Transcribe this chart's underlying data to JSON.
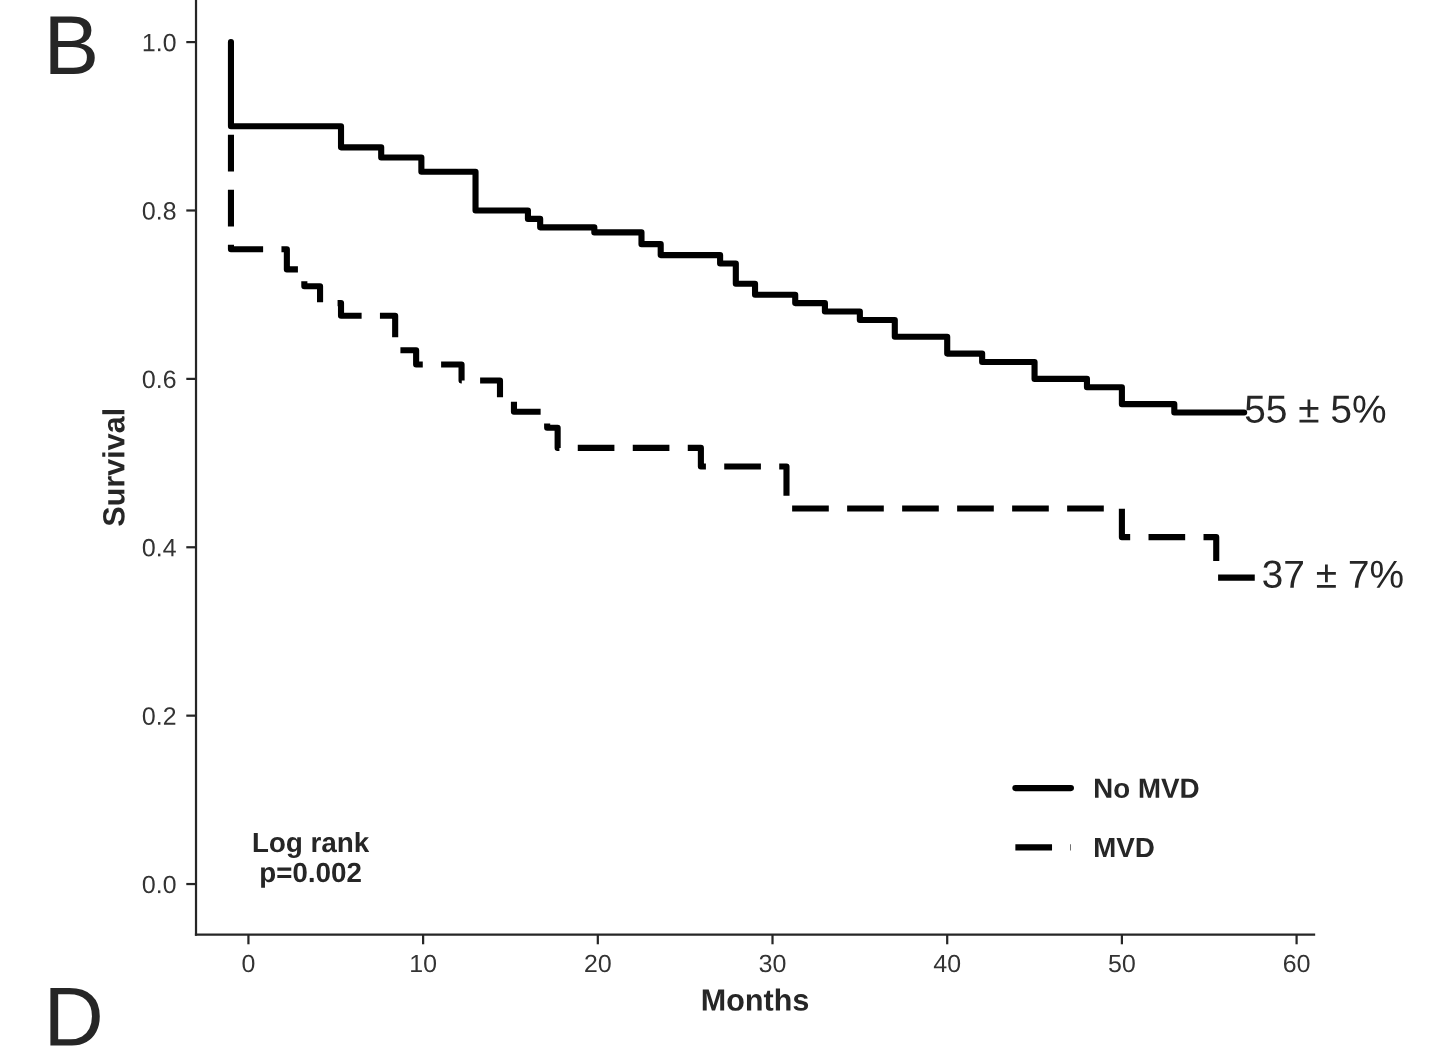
{
  "chart_data": {
    "type": "step",
    "title": "B",
    "xlabel": "Months",
    "ylabel": "Survival",
    "xlim": [
      -3,
      61
    ],
    "ylim": [
      -0.06,
      1.05
    ],
    "xticks": [
      0,
      10,
      20,
      30,
      40,
      50,
      60
    ],
    "yticks": [
      {
        "value": 0,
        "label": "0.0"
      },
      0.2,
      0.4,
      0.6,
      0.8,
      {
        "value": 1,
        "label": "1.0"
      }
    ],
    "series": [
      {
        "name": "No MVD",
        "color": "#000000",
        "line_style": "solid",
        "x": [
          -1,
          -1,
          5.3,
          7.6,
          9.9,
          13,
          16,
          16.7,
          19.8,
          22.5,
          23.6,
          27,
          27.9,
          29,
          31.3,
          33,
          35,
          37,
          40,
          42,
          45,
          48,
          50,
          53,
          57
        ],
        "values": [
          1.0,
          0.9,
          0.875,
          0.863,
          0.846,
          0.8,
          0.79,
          0.78,
          0.774,
          0.76,
          0.747,
          0.737,
          0.713,
          0.7,
          0.69,
          0.68,
          0.67,
          0.65,
          0.63,
          0.62,
          0.6,
          0.59,
          0.57,
          0.56,
          0.56
        ]
      },
      {
        "name": "MVD",
        "color": "#000000",
        "line_style": "dashed",
        "x": [
          -1,
          -1,
          2.2,
          3.2,
          4.1,
          5.3,
          8.4,
          9.6,
          12.2,
          14.4,
          15.2,
          17.1,
          17.7,
          25.9,
          30.8,
          50,
          55.4,
          58
        ],
        "values": [
          0.89,
          0.754,
          0.73,
          0.71,
          0.69,
          0.675,
          0.634,
          0.617,
          0.598,
          0.578,
          0.561,
          0.542,
          0.518,
          0.496,
          0.446,
          0.412,
          0.364,
          0.364
        ]
      }
    ],
    "annotations": [
      {
        "text": "55 ± 5%",
        "x": 57,
        "y": 0.56
      },
      {
        "text": "37 ± 7%",
        "x": 58,
        "y": 0.364
      },
      "Log rank\np=0.002",
      "D"
    ],
    "legend": "bottom right",
    "marker": "none",
    "grid": false
  }
}
